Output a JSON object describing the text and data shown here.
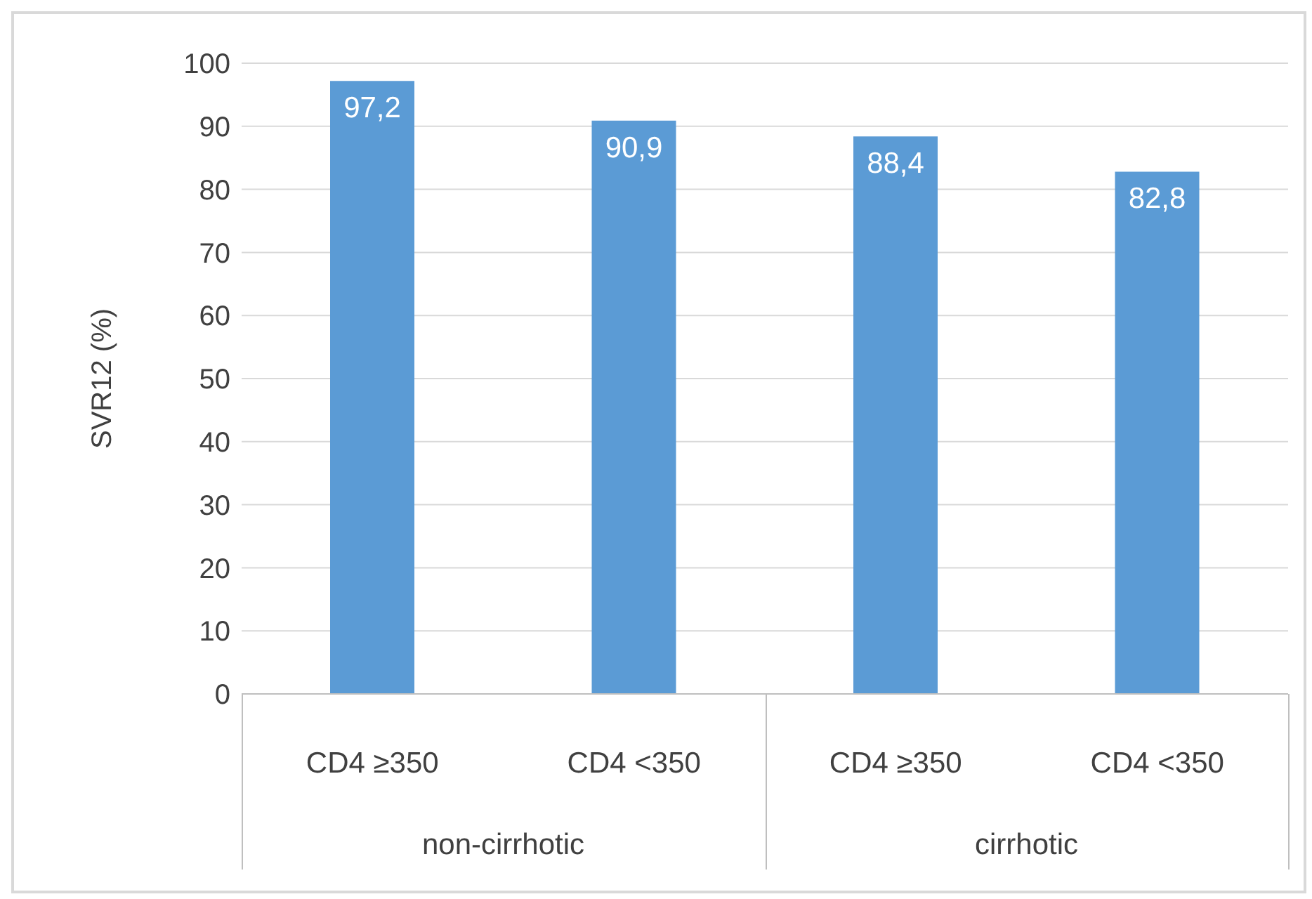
{
  "chart_data": {
    "type": "bar",
    "ylabel": "SVR12 (%)",
    "categories": [
      "CD4 ≥350",
      "CD4 <350",
      "CD4 ≥350",
      "CD4 <350"
    ],
    "values": [
      97.2,
      90.9,
      88.4,
      82.8
    ],
    "value_labels": [
      "97,2",
      "90,9",
      "88,4",
      "82,8"
    ],
    "color": "#5b9bd5",
    "ylim": [
      0,
      100
    ],
    "yticks": [
      0,
      10,
      20,
      30,
      40,
      50,
      60,
      70,
      80,
      90,
      100
    ],
    "grid": "y",
    "annotations": [
      "non-cirrhotic",
      "cirrhotic"
    ]
  }
}
